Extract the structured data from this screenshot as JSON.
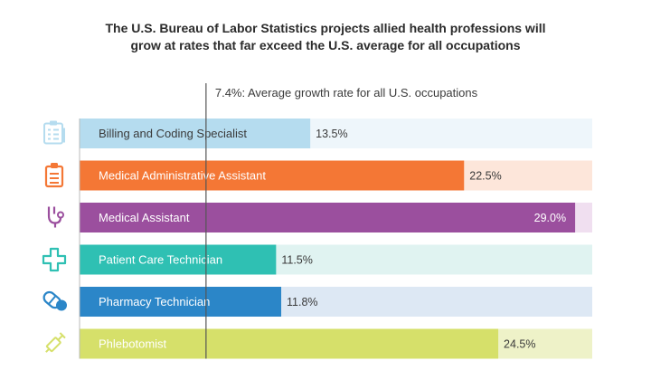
{
  "title": {
    "line1": "The U.S. Bureau of Labor Statistics projects allied health professions will",
    "line2": "grow at rates that far exceed the U.S. average for all occupations"
  },
  "chart_data": {
    "type": "bar",
    "orientation": "horizontal",
    "title": "The U.S. Bureau of Labor Statistics projects allied health professions will grow at rates that far exceed the U.S. average for all occupations",
    "xlim": [
      0,
      30
    ],
    "reference_line": {
      "value": 7.4,
      "label": "7.4%: Average growth rate for all U.S. occupations"
    },
    "categories": [
      "Billing and Coding Specialist",
      "Medical Administrative Assistant",
      "Medical Assistant",
      "Patient Care Technician",
      "Pharmacy Technician",
      "Phlebotomist"
    ],
    "values": [
      13.5,
      22.5,
      29.0,
      11.5,
      11.8,
      24.5
    ],
    "value_labels": [
      "13.5%",
      "22.5%",
      "29.0%",
      "11.5%",
      "11.8%",
      "24.5%"
    ],
    "colors": [
      "#b5dcef",
      "#f47735",
      "#9b4f9e",
      "#2fc0b3",
      "#2b86c8",
      "#d6e06a"
    ],
    "track_colors": [
      "#eef6fb",
      "#fde6da",
      "#f0dff0",
      "#e0f3f1",
      "#dde8f4",
      "#eef2c8"
    ],
    "icons": [
      "clipboard-checklist-icon",
      "clipboard-icon",
      "stethoscope-icon",
      "medical-cross-icon",
      "pill-capsule-icon",
      "syringe-icon"
    ],
    "grid": false,
    "legend": "none"
  }
}
